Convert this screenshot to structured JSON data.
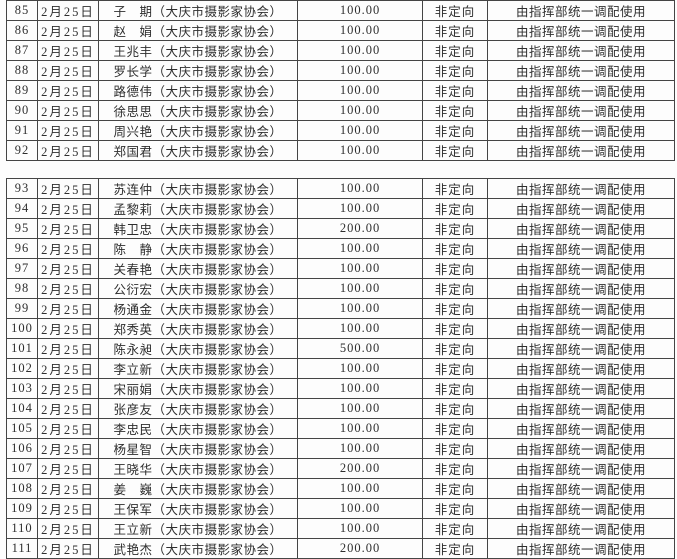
{
  "page": {
    "background_color": "#fdfdfd",
    "border_color": "#454545",
    "text_color": "#2e2e2e"
  },
  "table_blocks": [
    {
      "block_name": "rows-85-92",
      "rows": [
        {
          "no": "85",
          "date": "2月25日",
          "name": "子　期（大庆市摄影家协会）",
          "amount": "100.00",
          "direction": "非定向",
          "usage": "由指挥部统一调配使用"
        },
        {
          "no": "86",
          "date": "2月25日",
          "name": "赵　娟（大庆市摄影家协会）",
          "amount": "100.00",
          "direction": "非定向",
          "usage": "由指挥部统一调配使用"
        },
        {
          "no": "87",
          "date": "2月25日",
          "name": "王兆丰（大庆市摄影家协会）",
          "amount": "100.00",
          "direction": "非定向",
          "usage": "由指挥部统一调配使用"
        },
        {
          "no": "88",
          "date": "2月25日",
          "name": "罗长学（大庆市摄影家协会）",
          "amount": "100.00",
          "direction": "非定向",
          "usage": "由指挥部统一调配使用"
        },
        {
          "no": "89",
          "date": "2月25日",
          "name": "路德伟（大庆市摄影家协会）",
          "amount": "100.00",
          "direction": "非定向",
          "usage": "由指挥部统一调配使用"
        },
        {
          "no": "90",
          "date": "2月25日",
          "name": "徐思思（大庆市摄影家协会）",
          "amount": "100.00",
          "direction": "非定向",
          "usage": "由指挥部统一调配使用"
        },
        {
          "no": "91",
          "date": "2月25日",
          "name": "周兴艳（大庆市摄影家协会）",
          "amount": "100.00",
          "direction": "非定向",
          "usage": "由指挥部统一调配使用"
        },
        {
          "no": "92",
          "date": "2月25日",
          "name": "郑国君（大庆市摄影家协会）",
          "amount": "100.00",
          "direction": "非定向",
          "usage": "由指挥部统一调配使用"
        }
      ]
    },
    {
      "block_name": "rows-93-111",
      "rows": [
        {
          "no": "93",
          "date": "2月25日",
          "name": "苏连仲（大庆市摄影家协会）",
          "amount": "100.00",
          "direction": "非定向",
          "usage": "由指挥部统一调配使用"
        },
        {
          "no": "94",
          "date": "2月25日",
          "name": "孟黎莉（大庆市摄影家协会）",
          "amount": "100.00",
          "direction": "非定向",
          "usage": "由指挥部统一调配使用"
        },
        {
          "no": "95",
          "date": "2月25日",
          "name": "韩卫忠（大庆市摄影家协会）",
          "amount": "200.00",
          "direction": "非定向",
          "usage": "由指挥部统一调配使用"
        },
        {
          "no": "96",
          "date": "2月25日",
          "name": "陈　静（大庆市摄影家协会）",
          "amount": "100.00",
          "direction": "非定向",
          "usage": "由指挥部统一调配使用"
        },
        {
          "no": "97",
          "date": "2月25日",
          "name": "关春艳（大庆市摄影家协会）",
          "amount": "100.00",
          "direction": "非定向",
          "usage": "由指挥部统一调配使用"
        },
        {
          "no": "98",
          "date": "2月25日",
          "name": "公衍宏（大庆市摄影家协会）",
          "amount": "100.00",
          "direction": "非定向",
          "usage": "由指挥部统一调配使用"
        },
        {
          "no": "99",
          "date": "2月25日",
          "name": "杨通金（大庆市摄影家协会）",
          "amount": "100.00",
          "direction": "非定向",
          "usage": "由指挥部统一调配使用"
        },
        {
          "no": "100",
          "date": "2月25日",
          "name": "郑秀英（大庆市摄影家协会）",
          "amount": "100.00",
          "direction": "非定向",
          "usage": "由指挥部统一调配使用"
        },
        {
          "no": "101",
          "date": "2月25日",
          "name": "陈永昶（大庆市摄影家协会）",
          "amount": "500.00",
          "direction": "非定向",
          "usage": "由指挥部统一调配使用"
        },
        {
          "no": "102",
          "date": "2月25日",
          "name": "李立新（大庆市摄影家协会）",
          "amount": "100.00",
          "direction": "非定向",
          "usage": "由指挥部统一调配使用"
        },
        {
          "no": "103",
          "date": "2月25日",
          "name": "宋丽娟（大庆市摄影家协会）",
          "amount": "100.00",
          "direction": "非定向",
          "usage": "由指挥部统一调配使用"
        },
        {
          "no": "104",
          "date": "2月25日",
          "name": "张彦友（大庆市摄影家协会）",
          "amount": "100.00",
          "direction": "非定向",
          "usage": "由指挥部统一调配使用"
        },
        {
          "no": "105",
          "date": "2月25日",
          "name": "李忠民（大庆市摄影家协会）",
          "amount": "100.00",
          "direction": "非定向",
          "usage": "由指挥部统一调配使用"
        },
        {
          "no": "106",
          "date": "2月25日",
          "name": "杨星智（大庆市摄影家协会）",
          "amount": "100.00",
          "direction": "非定向",
          "usage": "由指挥部统一调配使用"
        },
        {
          "no": "107",
          "date": "2月25日",
          "name": "王晓华（大庆市摄影家协会）",
          "amount": "200.00",
          "direction": "非定向",
          "usage": "由指挥部统一调配使用"
        },
        {
          "no": "108",
          "date": "2月25日",
          "name": "姜　巍（大庆市摄影家协会）",
          "amount": "100.00",
          "direction": "非定向",
          "usage": "由指挥部统一调配使用"
        },
        {
          "no": "109",
          "date": "2月25日",
          "name": "王保军（大庆市摄影家协会）",
          "amount": "100.00",
          "direction": "非定向",
          "usage": "由指挥部统一调配使用"
        },
        {
          "no": "110",
          "date": "2月25日",
          "name": "王立新（大庆市摄影家协会）",
          "amount": "100.00",
          "direction": "非定向",
          "usage": "由指挥部统一调配使用"
        },
        {
          "no": "111",
          "date": "2月25日",
          "name": "武艳杰（大庆市摄影家协会）",
          "amount": "200.00",
          "direction": "非定向",
          "usage": "由指挥部统一调配使用"
        }
      ]
    }
  ]
}
